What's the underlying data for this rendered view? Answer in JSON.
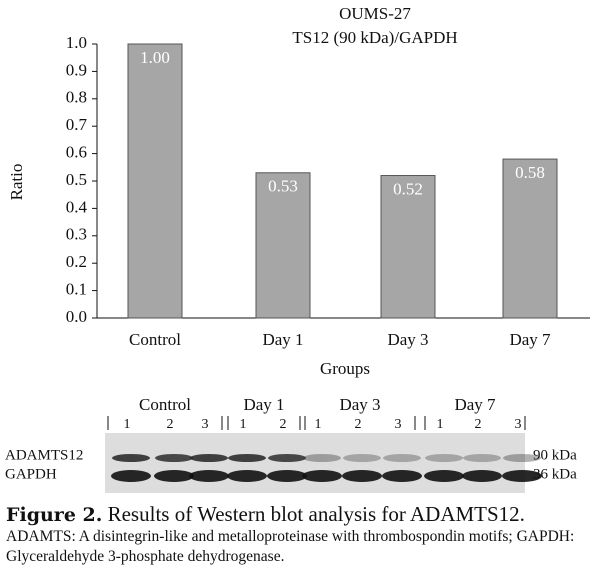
{
  "chart_data": {
    "type": "bar",
    "title": "OUMS-27",
    "subtitle": "TS12 (90 kDa)/GAPDH",
    "x_label": "Groups",
    "y_label": "Ratio",
    "categories": [
      "Control",
      "Day 1",
      "Day 3",
      "Day 7"
    ],
    "values": [
      1.0,
      0.53,
      0.52,
      0.58
    ],
    "value_labels": [
      "1.00",
      "0.53",
      "0.52",
      "0.58"
    ],
    "color": "#a6a6a6",
    "ylim": [
      0,
      1
    ],
    "yticks": [
      {
        "value": 0,
        "label": "0.0"
      },
      0.1,
      0.2,
      0.3,
      0.4,
      0.5,
      0.6,
      0.7,
      0.8,
      0.9,
      {
        "value": 1,
        "label": "1.0"
      }
    ],
    "grid": false
  },
  "blot": {
    "groups": [
      {
        "name": "Control",
        "lanes": [
          "1",
          "2",
          "3"
        ]
      },
      {
        "name": "Day 1",
        "lanes": [
          "1",
          "2"
        ]
      },
      {
        "name": "Day 3",
        "lanes": [
          "1",
          "2",
          "3"
        ]
      },
      {
        "name": "Day 7",
        "lanes": [
          "1",
          "2",
          "3"
        ]
      }
    ],
    "rows": [
      {
        "label": "ADAMTS12",
        "size": "90 kDa"
      },
      {
        "label": "GAPDH",
        "size": "36 kDa"
      }
    ]
  },
  "caption": {
    "label": "Figure 2.",
    "title": "Results of Western blot analysis for ADAMTS12.",
    "note": "ADAMTS: A disintegrin-like and metalloproteinase with thrombospondin motifs; GAPDH: Glyceraldehyde 3-phosphate dehydrogenase."
  }
}
